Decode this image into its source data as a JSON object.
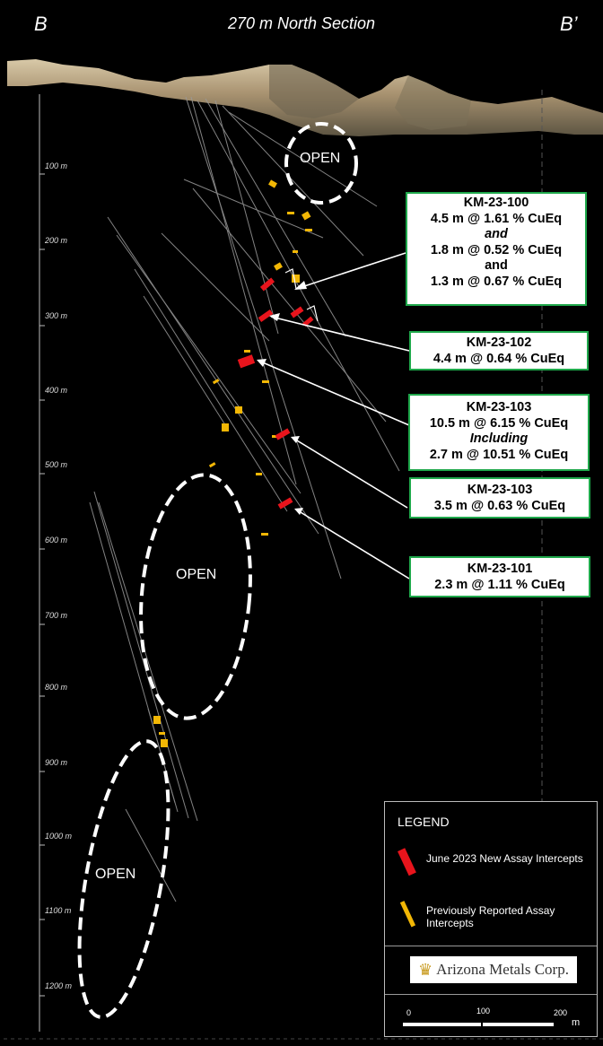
{
  "header": {
    "left_label": "B",
    "right_label": "B’",
    "title": "270 m North Section"
  },
  "depth_scale": [
    "100 m",
    "200 m",
    "300 m",
    "400 m",
    "500 m",
    "600 m",
    "700 m",
    "800 m",
    "900 m",
    "1000 m",
    "1100 m",
    "1200 m"
  ],
  "open_labels": [
    "OPEN",
    "OPEN",
    "OPEN"
  ],
  "callouts": [
    {
      "hole": "KM-23-100",
      "lines": [
        "4.5 m @ 1.61 % CuEq",
        "and",
        "1.8 m @ 0.52 % CuEq",
        "and",
        "1.3 m @ 0.67 % CuEq"
      ]
    },
    {
      "hole": "KM-23-102",
      "lines": [
        "4.4 m @ 0.64 % CuEq"
      ]
    },
    {
      "hole": "KM-23-103",
      "lines": [
        "10.5 m @ 6.15 % CuEq",
        "Including",
        "2.7 m @ 10.51 % CuEq"
      ]
    },
    {
      "hole": "KM-23-103",
      "lines": [
        "3.5 m @ 0.63 % CuEq"
      ]
    },
    {
      "hole": "KM-23-101",
      "lines": [
        "2.3 m @ 1.11 % CuEq"
      ]
    }
  ],
  "legend": {
    "title": "LEGEND",
    "new_label": "June 2023 New Assay Intercepts",
    "prev_label": "Previously Reported Assay Intercepts",
    "logo_text": "Arizona Metals Corp.",
    "scale_labels": [
      "0",
      "100",
      "200"
    ],
    "scale_unit": "m"
  },
  "colors": {
    "background": "#000000",
    "new_intercept": "#e8141c",
    "previous_intercept": "#f2b705",
    "callout_border": "#1fa84b",
    "drill_trace": "#9a9a9a"
  }
}
